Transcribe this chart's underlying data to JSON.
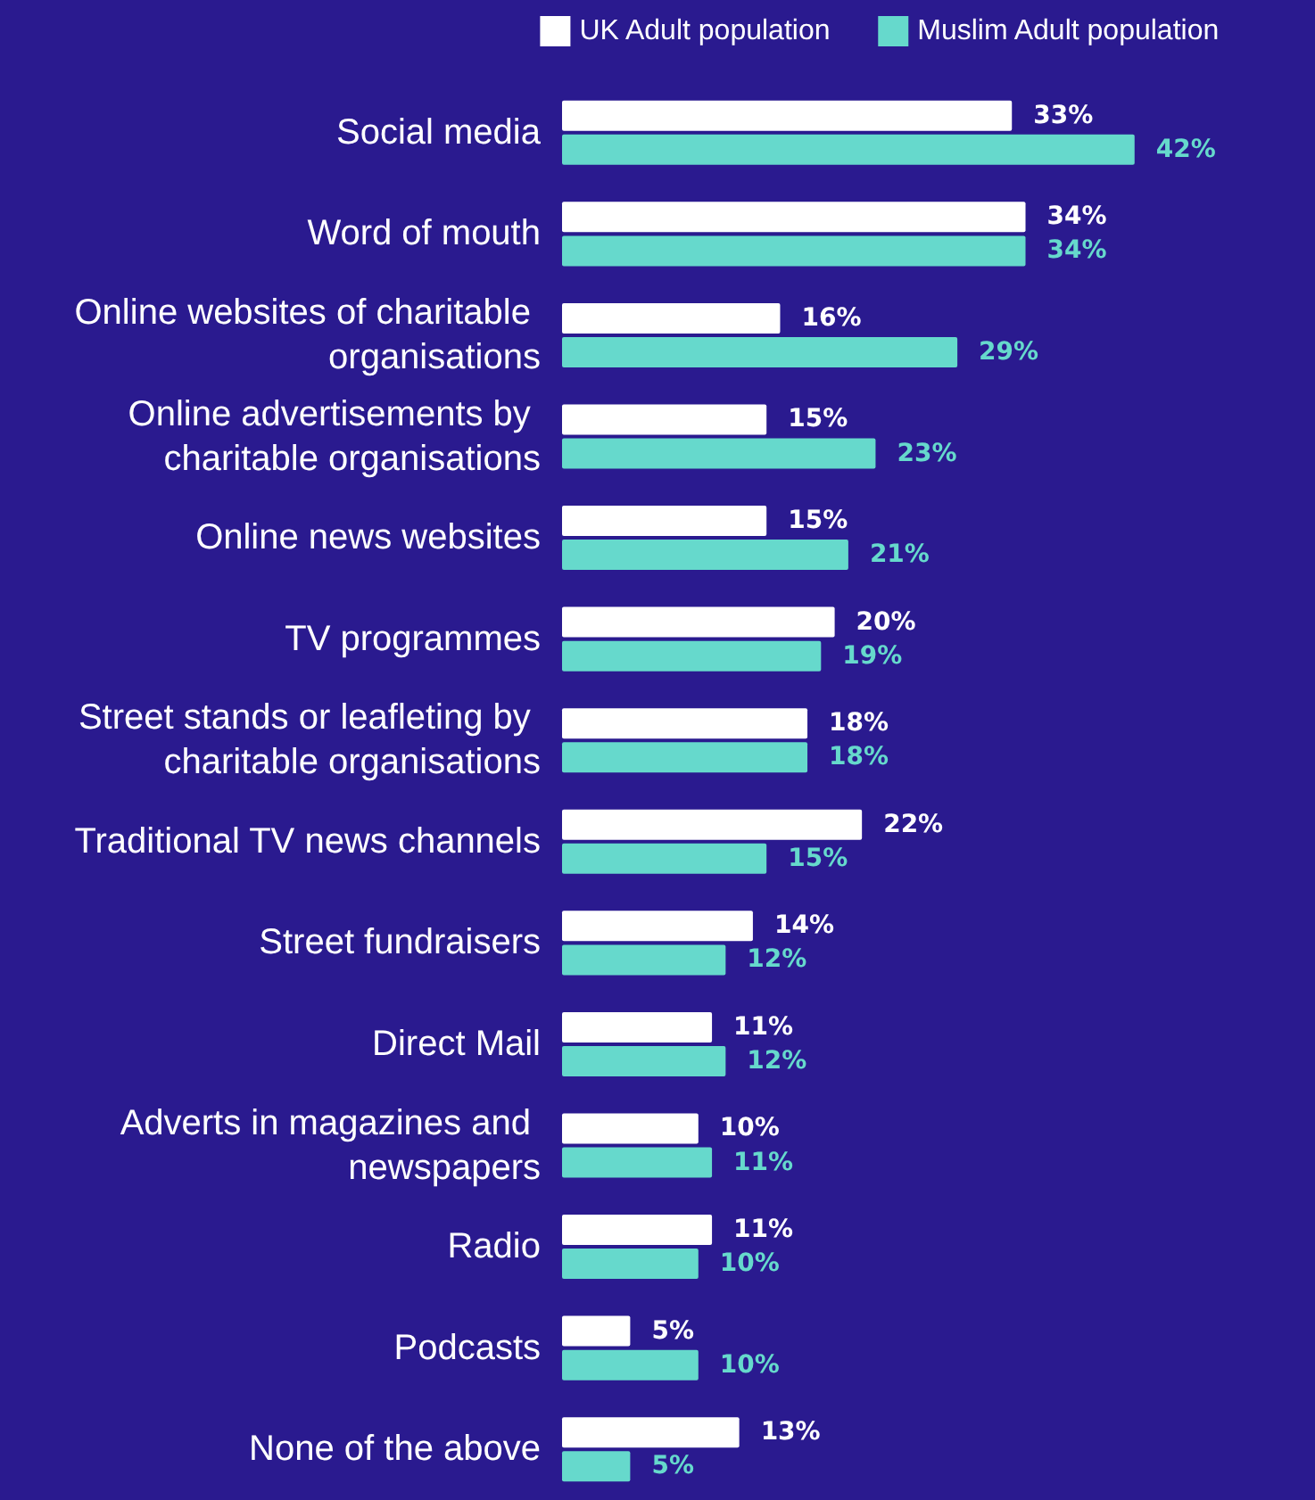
{
  "chart_data": {
    "type": "bar",
    "orientation": "horizontal",
    "legend": "top right",
    "categories": [
      "Social media",
      "Word of mouth",
      "Online websites of charitable organisations",
      "Online advertisements by charitable organisations",
      "Online news websites",
      "TV programmes",
      "Street stands or leafleting by charitable organisations",
      "Traditional TV news channels",
      "Street fundraisers",
      "Direct Mail",
      "Adverts in magazines and newspapers",
      "Radio",
      "Podcasts",
      "None of the above"
    ],
    "series": [
      {
        "name": "UK Adult population",
        "color": "#ffffff",
        "values": [
          33,
          34,
          16,
          15,
          15,
          20,
          18,
          22,
          14,
          11,
          10,
          11,
          5,
          13
        ],
        "value_labels": [
          "33%",
          "34%",
          "16%",
          "15%",
          "15%",
          "20%",
          "18%",
          "22%",
          "14%",
          "11%",
          "10%",
          "11%",
          "5%",
          "13%"
        ]
      },
      {
        "name": "Muslim Adult population",
        "color": "#66d9cc",
        "values": [
          42,
          34,
          29,
          23,
          21,
          19,
          18,
          15,
          12,
          12,
          11,
          10,
          10,
          5
        ],
        "value_labels": [
          "42%",
          "34%",
          "29%",
          "23%",
          "21%",
          "19%",
          "18%",
          "15%",
          "12%",
          "12%",
          "11%",
          "10%",
          "10%",
          "5%"
        ]
      }
    ]
  }
}
